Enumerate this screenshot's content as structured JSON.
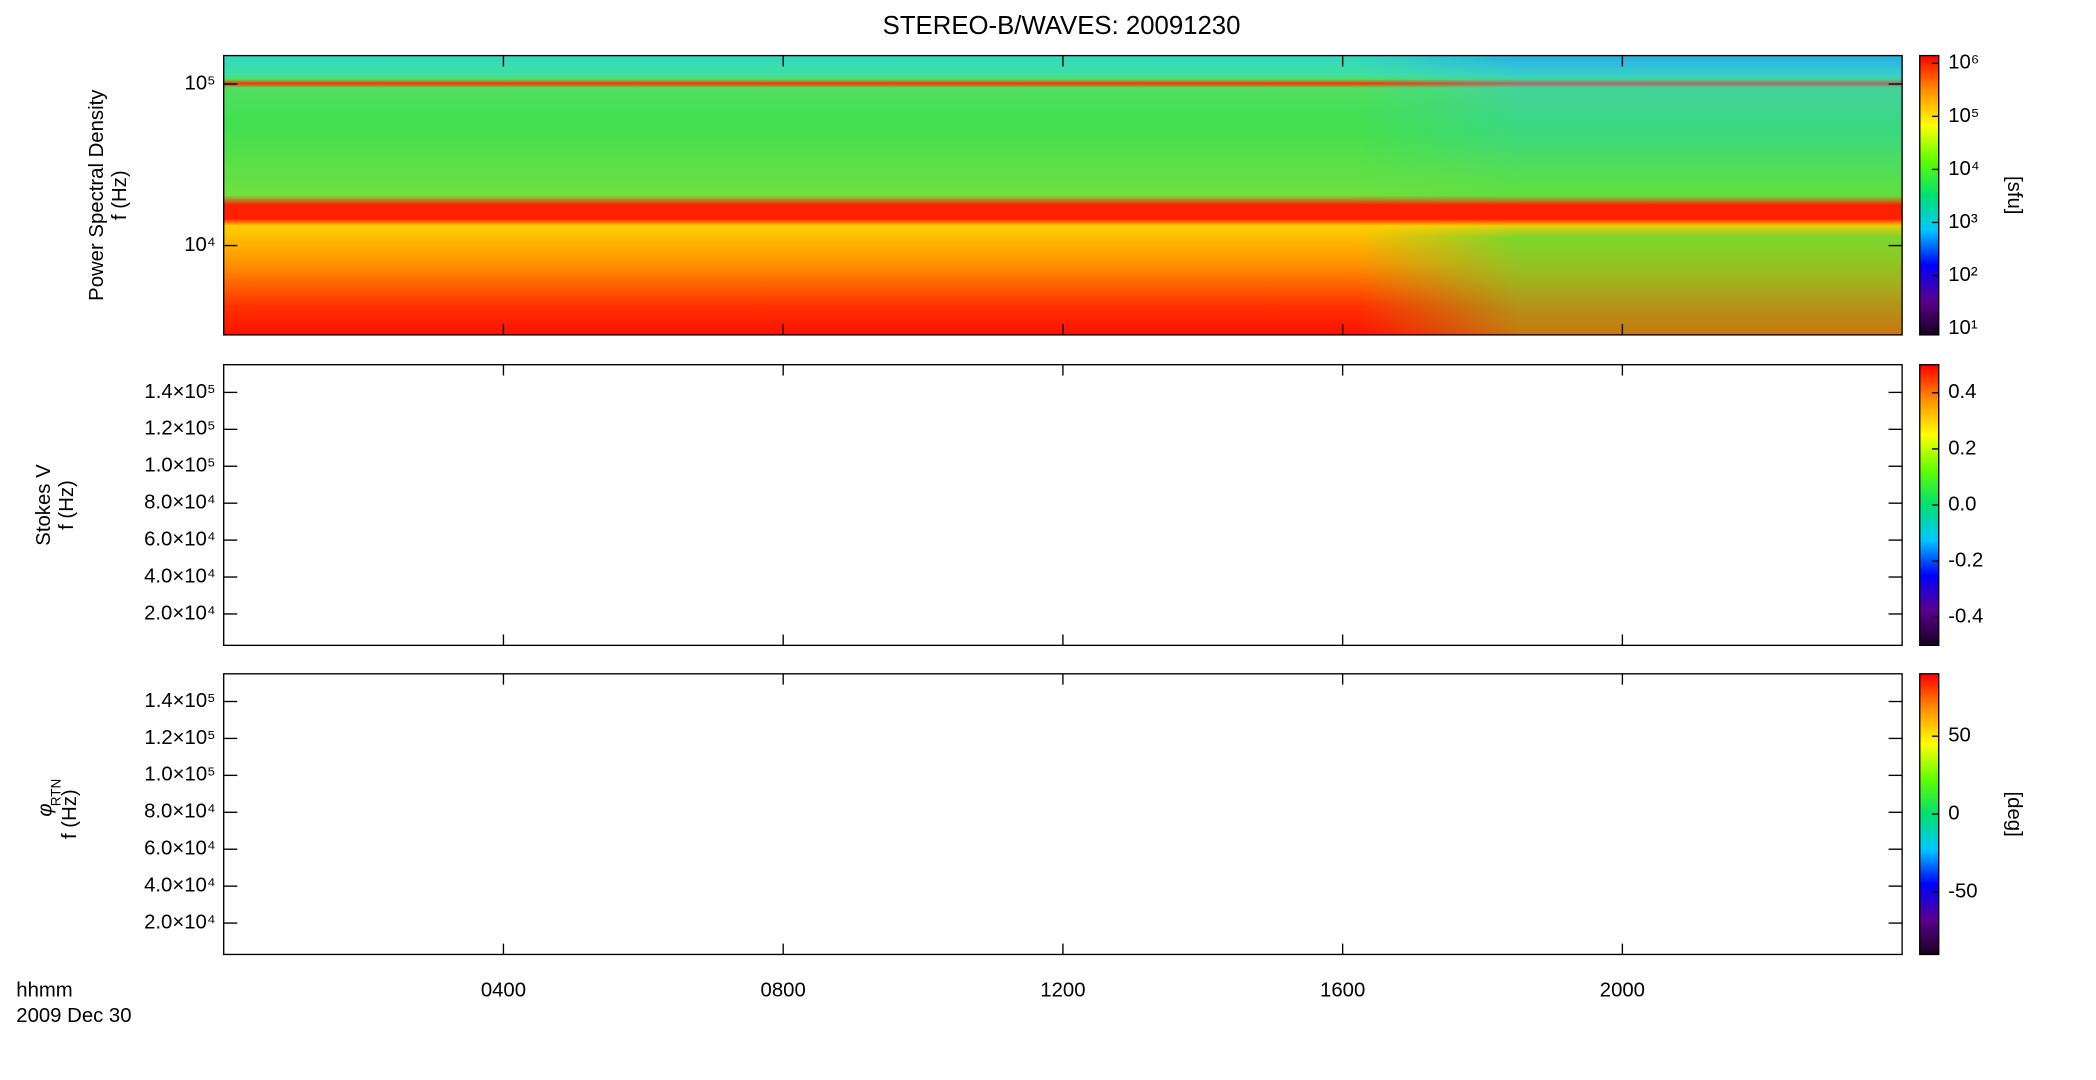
{
  "chart_data": {
    "type": "spectrogram",
    "title": "STEREO-B/WAVES: 20091230",
    "xlim": [
      0,
      24
    ],
    "xticks": [
      {
        "value": 4,
        "label": "0400"
      },
      {
        "value": 8,
        "label": "0800"
      },
      {
        "value": 12,
        "label": "1200"
      },
      {
        "value": 16,
        "label": "1600"
      },
      {
        "value": 20,
        "label": "2000"
      }
    ],
    "xlabel": "hhmm",
    "date": "2009 Dec 30",
    "colormap": [
      "#1a0020",
      "#5a0090",
      "#0000ff",
      "#00c8ff",
      "#00e070",
      "#60ff00",
      "#ffff00",
      "#ff9000",
      "#ff0000"
    ],
    "panels": [
      {
        "ylabel": [
          "Power Spectral Density",
          "f (Hz)"
        ],
        "yscale": "log",
        "ylim": [
          2800,
          150000
        ],
        "yticks": [
          {
            "value": 10000,
            "label": "10⁴"
          },
          {
            "value": 100000,
            "label": "10⁵"
          }
        ],
        "colorbar": {
          "scale": "log",
          "lim": [
            7.6,
            1400000
          ],
          "label": "[sfu]",
          "ticks": [
            {
              "value": 10,
              "label": "10¹"
            },
            {
              "value": 100,
              "label": "10²"
            },
            {
              "value": 1000,
              "label": "10³"
            },
            {
              "value": 10000,
              "label": "10⁴"
            },
            {
              "value": 100000,
              "label": "10⁵"
            },
            {
              "value": 1000000,
              "label": "10⁶"
            }
          ]
        }
      },
      {
        "ylabel": [
          "Stokes V",
          "f (Hz)"
        ],
        "yscale": "linear",
        "ylim": [
          3000,
          155000
        ],
        "yticks": [
          {
            "value": 20000,
            "label": "2.0×10⁴"
          },
          {
            "value": 40000,
            "label": "4.0×10⁴"
          },
          {
            "value": 60000,
            "label": "6.0×10⁴"
          },
          {
            "value": 80000,
            "label": "8.0×10⁴"
          },
          {
            "value": 100000,
            "label": "1.0×10⁵"
          },
          {
            "value": 120000,
            "label": "1.2×10⁵"
          },
          {
            "value": 140000,
            "label": "1.4×10⁵"
          }
        ],
        "colorbar": {
          "scale": "linear",
          "lim": [
            -0.5,
            0.5
          ],
          "ticks": [
            -0.4,
            -0.2,
            {
              "value": 0,
              "label": "0.0"
            },
            0.2,
            0.4
          ]
        }
      },
      {
        "ylabel_symbol": "φ",
        "ylabel_subscript": "RTN",
        "ylabel": [
          "f (Hz)"
        ],
        "yscale": "linear",
        "ylim": [
          3000,
          155000
        ],
        "yticks": [
          {
            "value": 20000,
            "label": "2.0×10⁴"
          },
          {
            "value": 40000,
            "label": "4.0×10⁴"
          },
          {
            "value": 60000,
            "label": "6.0×10⁴"
          },
          {
            "value": 80000,
            "label": "8.0×10⁴"
          },
          {
            "value": 100000,
            "label": "1.0×10⁵"
          },
          {
            "value": 120000,
            "label": "1.2×10⁵"
          },
          {
            "value": 140000,
            "label": "1.4×10⁵"
          }
        ],
        "colorbar": {
          "scale": "linear",
          "lim": [
            -90,
            90
          ],
          "label": "[deg]",
          "ticks": [
            -50,
            0,
            50
          ]
        }
      }
    ]
  }
}
